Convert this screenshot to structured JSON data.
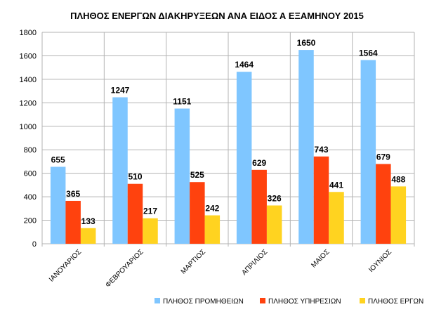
{
  "chart_data": {
    "type": "bar",
    "title": "ΠΛΗΘΟΣ ΕΝΕΡΓΩΝ ΔΙΑΚΗΡΥΞΕΩΝ ΑΝΑ ΕΙΔΟΣ Α ΕΞΑΜΗΝΟΥ 2015",
    "xlabel": "",
    "ylabel": "",
    "ylim": [
      0,
      1800
    ],
    "yticks": [
      0,
      200,
      400,
      600,
      800,
      1000,
      1200,
      1400,
      1600,
      1800
    ],
    "grid": true,
    "legend_position": "bottom-right",
    "categories": [
      "ΙΑΝΟΥΑΡΙΟΣ",
      "ΦΕΒΡΟΥΑΡΙΟΣ",
      "ΜΑΡΤΙΟΣ",
      "ΑΠΡΙΛΙΟΣ",
      "ΜΑΙΟΣ",
      "ΙΟΥΝΙΟΣ"
    ],
    "series": [
      {
        "name": "ΠΛΗΘΟΣ ΠΡΟΜΗΘΕΙΩΝ",
        "color": "#7fc6ff",
        "values": [
          655,
          1247,
          1151,
          1464,
          1650,
          1564
        ]
      },
      {
        "name": "ΠΛΗΘΟΣ ΥΠΗΡΕΣΙΩΝ",
        "color": "#ff420e",
        "values": [
          365,
          510,
          525,
          629,
          743,
          679
        ]
      },
      {
        "name": "ΠΛΗΘΟΣ ΕΡΓΩΝ",
        "color": "#ffd320",
        "values": [
          133,
          217,
          242,
          326,
          441,
          488
        ]
      }
    ]
  }
}
